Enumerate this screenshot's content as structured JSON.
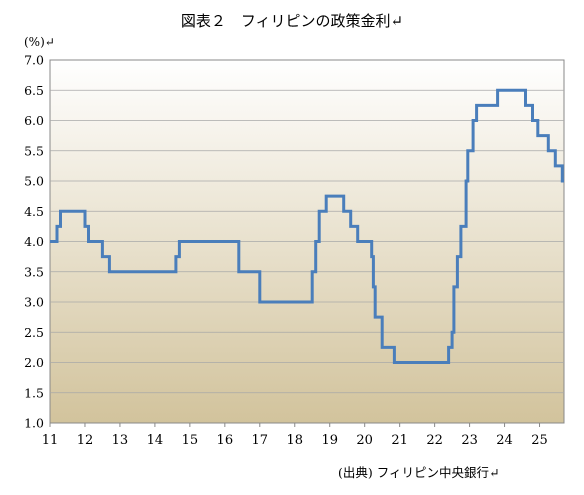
{
  "chart_data": {
    "type": "line",
    "title": "図表２　フィリピンの政策金利↵",
    "unit_label": "(%)↵",
    "source": "(出典) フィリピン中央銀行↵",
    "ylim": [
      1.0,
      7.0
    ],
    "xlim": [
      11,
      25.7
    ],
    "y_ticks": [
      "7.0",
      "6.5",
      "6.0",
      "5.5",
      "5.0",
      "4.5",
      "4.0",
      "3.5",
      "3.0",
      "2.5",
      "2.0",
      "1.5",
      "1.0"
    ],
    "x_ticks": [
      "11",
      "12",
      "13",
      "14",
      "15",
      "16",
      "17",
      "18",
      "19",
      "20",
      "21",
      "22",
      "23",
      "24",
      "25"
    ],
    "grid": true,
    "series": [
      {
        "color": "#4a7ebb",
        "step": true,
        "points": [
          [
            11.0,
            4.0
          ],
          [
            11.2,
            4.25
          ],
          [
            11.3,
            4.5
          ],
          [
            12.0,
            4.25
          ],
          [
            12.1,
            4.0
          ],
          [
            12.5,
            3.75
          ],
          [
            12.7,
            3.5
          ],
          [
            14.6,
            3.75
          ],
          [
            14.7,
            4.0
          ],
          [
            16.4,
            3.5
          ],
          [
            17.0,
            3.0
          ],
          [
            18.5,
            3.5
          ],
          [
            18.6,
            4.0
          ],
          [
            18.7,
            4.5
          ],
          [
            18.9,
            4.75
          ],
          [
            19.4,
            4.5
          ],
          [
            19.6,
            4.25
          ],
          [
            19.8,
            4.0
          ],
          [
            20.2,
            3.75
          ],
          [
            20.25,
            3.25
          ],
          [
            20.3,
            2.75
          ],
          [
            20.5,
            2.25
          ],
          [
            20.85,
            2.0
          ],
          [
            22.4,
            2.25
          ],
          [
            22.5,
            2.5
          ],
          [
            22.55,
            3.25
          ],
          [
            22.65,
            3.75
          ],
          [
            22.75,
            4.25
          ],
          [
            22.9,
            5.0
          ],
          [
            22.95,
            5.5
          ],
          [
            23.1,
            6.0
          ],
          [
            23.2,
            6.25
          ],
          [
            23.8,
            6.5
          ],
          [
            24.6,
            6.25
          ],
          [
            24.8,
            6.0
          ],
          [
            24.95,
            5.75
          ],
          [
            25.25,
            5.5
          ],
          [
            25.45,
            5.25
          ],
          [
            25.65,
            5.0
          ]
        ],
        "end_x": 25.7
      }
    ]
  }
}
